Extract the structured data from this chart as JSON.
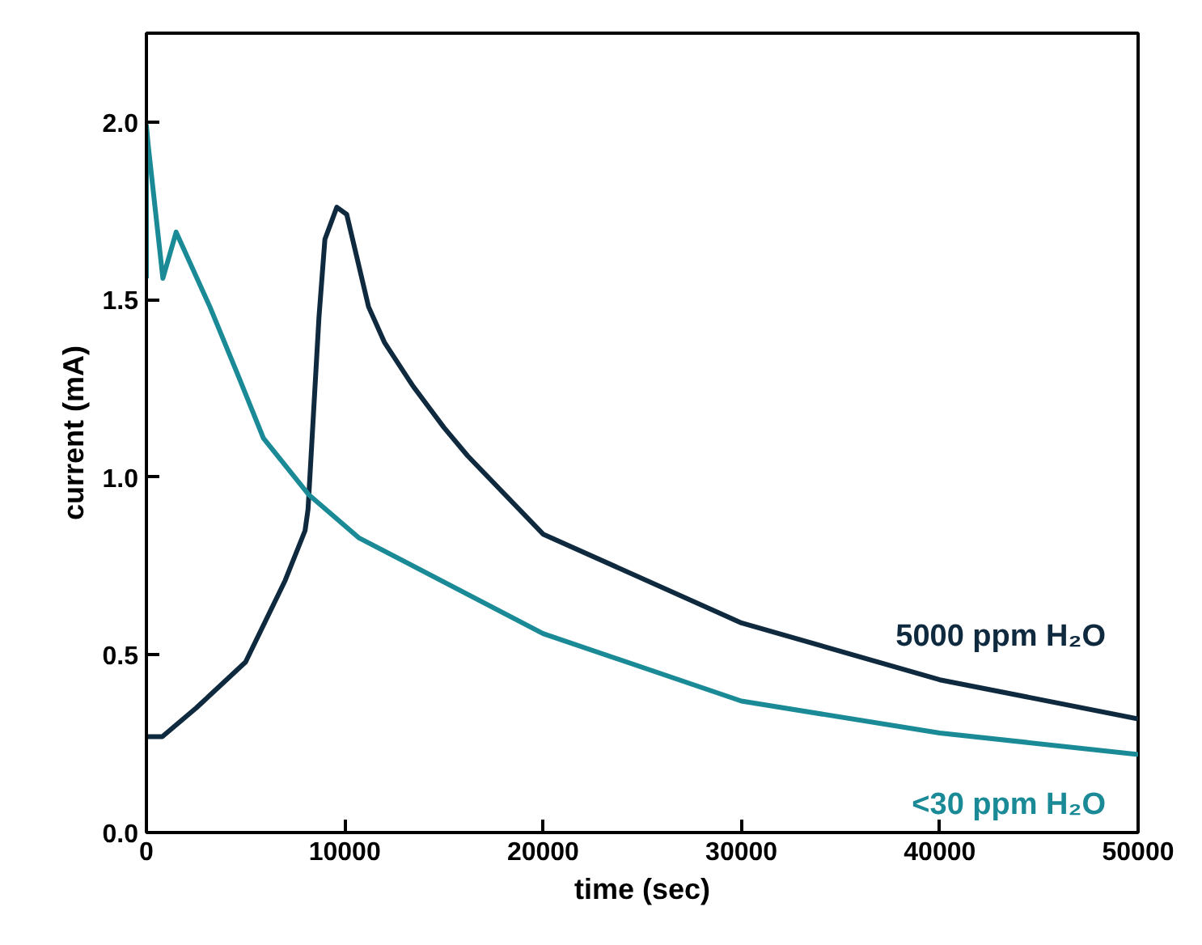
{
  "chart_data": {
    "type": "line",
    "xlabel": "time (sec)",
    "ylabel": "current (mA)",
    "xlim": [
      0,
      50000
    ],
    "ylim": [
      0,
      2.25
    ],
    "xticks": [
      0,
      10000,
      20000,
      30000,
      40000,
      50000
    ],
    "yticks": [
      {
        "value": 0,
        "label": "0.0"
      },
      {
        "value": 0.5,
        "label": "0.5"
      },
      {
        "value": 1,
        "label": "1.0"
      },
      {
        "value": 1.5,
        "label": "1.5"
      },
      {
        "value": 2,
        "label": "2.0"
      }
    ],
    "grid": false,
    "line_style": "solid",
    "marker": "none",
    "series": [
      {
        "name": "5000 ppm H₂O",
        "color": "#0f2a3f",
        "x": [
          0,
          800,
          2500,
          5000,
          7000,
          8000,
          8150,
          8700,
          9000,
          9600,
          10100,
          11200,
          12000,
          13400,
          15000,
          16200,
          20000,
          30000,
          40000,
          50000
        ],
        "values": [
          0.27,
          0.27,
          0.35,
          0.48,
          0.71,
          0.85,
          0.91,
          1.45,
          1.67,
          1.76,
          1.74,
          1.48,
          1.38,
          1.26,
          1.14,
          1.06,
          0.84,
          0.59,
          0.43,
          0.32
        ]
      },
      {
        "name": "<30 ppm H₂O",
        "color": "#1a8a96",
        "x": [
          0,
          0,
          100,
          830,
          1500,
          3200,
          4600,
          5900,
          8200,
          10700,
          20000,
          30000,
          40000,
          50000
        ],
        "values": [
          1.56,
          1.99,
          1.93,
          1.56,
          1.69,
          1.48,
          1.29,
          1.11,
          0.95,
          0.83,
          0.56,
          0.37,
          0.28,
          0.22
        ]
      }
    ]
  }
}
